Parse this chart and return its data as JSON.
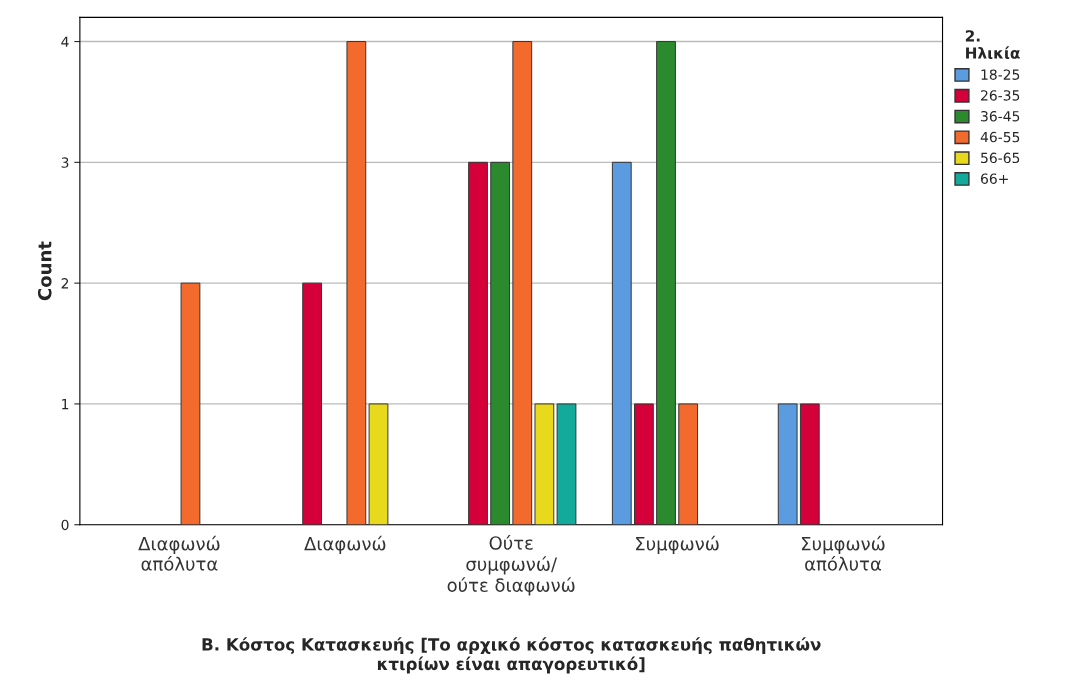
{
  "chart_data": {
    "type": "bar",
    "categories": [
      "Διαφωνώ\nαπόλυτα",
      "Διαφωνώ",
      "Ούτε\nσυμφωνώ/\nούτε διαφωνώ",
      "Συμφωνώ",
      "Συμφωνώ\nαπόλυτα"
    ],
    "xlabel": "Β. Κόστος Κατασκευής [Το αρχικό κόστος κατασκευής παθητικών\nκτιρίων είναι απαγορευτικό]",
    "ylabel": "Count",
    "legend_title": "2.\nΗλικία",
    "series": [
      {
        "name": "18-25",
        "color": "#5b9be0",
        "values": [
          null,
          null,
          null,
          3,
          1
        ]
      },
      {
        "name": "26-35",
        "color": "#d5003a",
        "values": [
          null,
          2,
          3,
          1,
          1
        ]
      },
      {
        "name": "36-45",
        "color": "#2b8a2e",
        "values": [
          null,
          null,
          3,
          4,
          null
        ]
      },
      {
        "name": "46-55",
        "color": "#f26a2c",
        "values": [
          2,
          4,
          4,
          1,
          null
        ]
      },
      {
        "name": "56-65",
        "color": "#e8d91c",
        "values": [
          null,
          1,
          1,
          null,
          null
        ]
      },
      {
        "name": "66+",
        "color": "#13a99b",
        "values": [
          null,
          null,
          1,
          null,
          null
        ]
      }
    ],
    "ylim": [
      0,
      4.2
    ],
    "yticks": [
      0,
      1,
      2,
      3,
      4
    ],
    "grid": "y",
    "legend": "top right"
  }
}
